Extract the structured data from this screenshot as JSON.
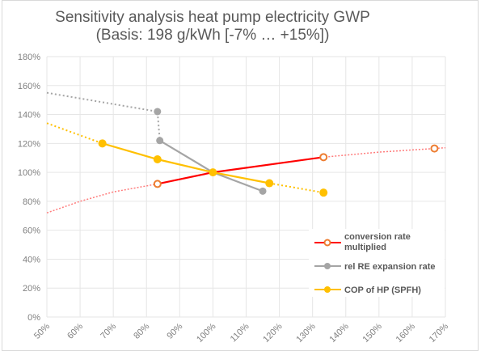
{
  "chart_data": {
    "type": "line",
    "title": "Sensitivity analysis heat pump electricity GWP",
    "subtitle": "(Basis: 198 g/kWh [-7% … +15%])",
    "xlabel": "",
    "ylabel": "",
    "xlim": [
      50,
      170
    ],
    "ylim": [
      0,
      180
    ],
    "x_ticks": [
      "50%",
      "60%",
      "70%",
      "80%",
      "90%",
      "100%",
      "110%",
      "120%",
      "130%",
      "140%",
      "150%",
      "160%",
      "170%"
    ],
    "y_ticks": [
      "0%",
      "20%",
      "40%",
      "60%",
      "80%",
      "100%",
      "120%",
      "140%",
      "160%",
      "180%"
    ],
    "grid": true,
    "legend_position": "bottom-right",
    "series": [
      {
        "name": "conversion rate multiplied",
        "color": "#ff0000",
        "marker_color": "#ed7d31",
        "marker": "open-circle",
        "points": [
          [
            83.3,
            92
          ],
          [
            100,
            100
          ],
          [
            133.3,
            110.5
          ],
          [
            166.7,
            116.5
          ]
        ],
        "solid_range": [
          83.3,
          133.3
        ],
        "trend": [
          [
            50,
            72
          ],
          [
            60,
            80
          ],
          [
            70,
            86.5
          ],
          [
            83.3,
            92
          ],
          [
            100,
            100
          ],
          [
            133.3,
            110.5
          ],
          [
            150,
            114
          ],
          [
            166.7,
            116.5
          ],
          [
            170,
            117
          ]
        ]
      },
      {
        "name": "rel RE expansion rate",
        "color": "#a5a5a5",
        "marker": "filled-circle",
        "points": [
          [
            84,
            122
          ],
          [
            100,
            100
          ],
          [
            115,
            87
          ]
        ],
        "extra_points": [
          [
            83.3,
            142
          ]
        ],
        "trend": [
          [
            50,
            155
          ],
          [
            83.3,
            142
          ],
          [
            84,
            122
          ]
        ]
      },
      {
        "name": "COP of HP (SPFH)",
        "color": "#ffc000",
        "marker": "filled-circle",
        "points": [
          [
            66.7,
            120
          ],
          [
            83.3,
            109
          ],
          [
            100,
            100
          ],
          [
            117,
            92.5
          ],
          [
            133.3,
            86
          ]
        ],
        "solid_range": [
          66.7,
          117
        ],
        "trend": [
          [
            50,
            134
          ],
          [
            66.7,
            120
          ]
        ]
      }
    ]
  },
  "legend": {
    "items": [
      "conversion rate",
      "rel RE expansion rate",
      "COP of HP (SPFH)"
    ],
    "item0_line2": "multiplied"
  }
}
